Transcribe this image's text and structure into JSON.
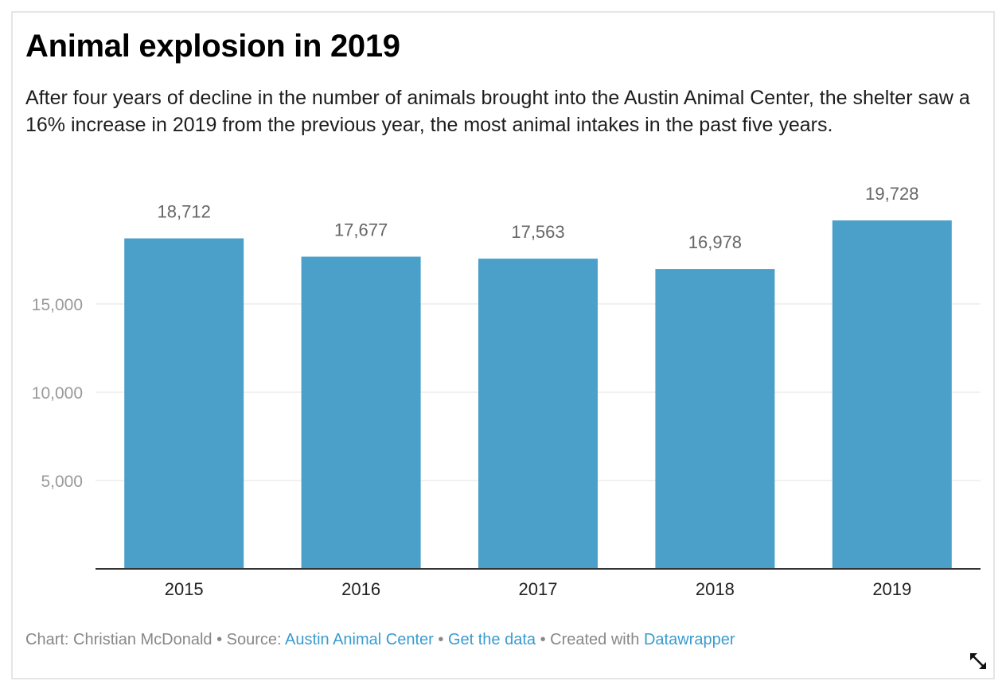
{
  "header": {
    "title": "Animal explosion in 2019",
    "description": "After four years of decline in the number of animals brought into the Austin Animal Center, the shelter saw a 16% increase in 2019 from the previous year, the most animal intakes in the past five years."
  },
  "chart_data": {
    "type": "bar",
    "categories": [
      "2015",
      "2016",
      "2017",
      "2018",
      "2019"
    ],
    "values": [
      18712,
      17677,
      17563,
      16978,
      19728
    ],
    "value_labels": [
      "18,712",
      "17,677",
      "17,563",
      "16,978",
      "19,728"
    ],
    "yticks": [
      5000,
      10000,
      15000
    ],
    "ytick_labels": [
      "5,000",
      "10,000",
      "15,000"
    ],
    "ylim": [
      0,
      20000
    ],
    "grid": true,
    "bar_color": "#4ba0c9"
  },
  "footer": {
    "chart_prefix": "Chart: Christian McDonald",
    "sep1": " • ",
    "source_prefix": "Source: ",
    "source_link": "Austin Animal Center",
    "sep2": " • ",
    "get_data": "Get the data",
    "sep3": " • ",
    "created_prefix": "Created with ",
    "created_link": "Datawrapper"
  },
  "colors": {
    "link": "#3a9bd0",
    "grid": "#e3e3e3",
    "muted_text": "#888888"
  },
  "icons": {
    "resize": "resize-diagonal-arrow-icon"
  }
}
